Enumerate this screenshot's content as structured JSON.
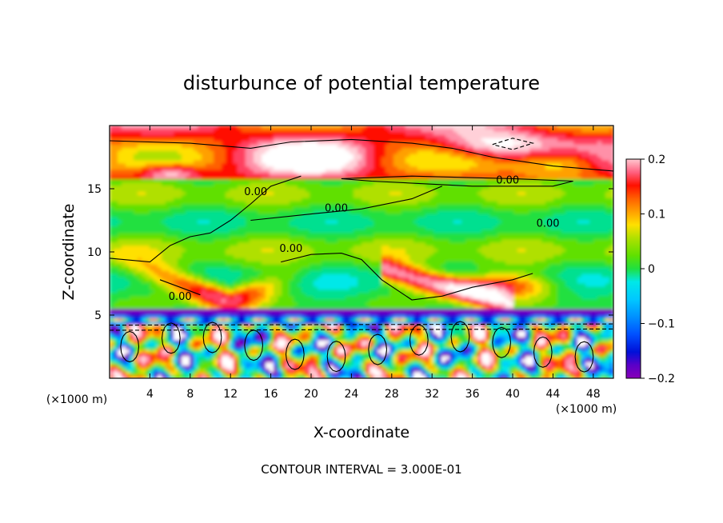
{
  "chart_data": {
    "type": "heatmap",
    "title": "disturbunce of potential temperature",
    "xlabel": "X-coordinate",
    "ylabel": "Z-coordinate",
    "x_unit_left": "(×1000 m)",
    "x_unit_right": "(×1000 m)",
    "xlim": [
      0,
      50
    ],
    "ylim": [
      0,
      20
    ],
    "xticks": [
      4,
      8,
      12,
      16,
      20,
      24,
      28,
      32,
      36,
      40,
      44,
      48
    ],
    "yticks": [
      5,
      10,
      15
    ],
    "colorbar": {
      "range": [
        -0.2,
        0.2
      ],
      "ticks": [
        0.2,
        0.1,
        0,
        -0.1,
        -0.2
      ],
      "tick_labels": [
        "0.2",
        "0.1",
        "0",
        "−0.1",
        "−0.2"
      ],
      "colors": [
        "#8800b8",
        "#5a00c8",
        "#0010d8",
        "#0050ff",
        "#0090ff",
        "#00c8ff",
        "#00e8e8",
        "#00e090",
        "#20e040",
        "#60e000",
        "#b0e000",
        "#ffe000",
        "#ffa000",
        "#ff6000",
        "#ff1000",
        "#ff4060",
        "#ff90a8",
        "#ffd0d8"
      ]
    },
    "contour_interval_text": "CONTOUR INTERVAL = 3.000E-01",
    "contour_labels": [
      {
        "text": "0.00",
        "x": 14.5,
        "z": 14.5
      },
      {
        "text": "0.00",
        "x": 22.5,
        "z": 13.2
      },
      {
        "text": "0.00",
        "x": 39.5,
        "z": 15.4
      },
      {
        "text": "0.00",
        "x": 43.5,
        "z": 12.0
      },
      {
        "text": "0.00",
        "x": 18.0,
        "z": 10.0
      },
      {
        "text": "0.00",
        "x": 7.0,
        "z": 6.2
      }
    ],
    "features": {
      "upper_band": {
        "z_range": [
          15.8,
          20
        ],
        "mean": 0.12
      },
      "mid_band": {
        "z_range": [
          6,
          15.8
        ],
        "mean": 0.0
      },
      "stable_layer": {
        "z_range": [
          4.2,
          5.5
        ],
        "mean": -0.17
      },
      "lower_band": {
        "z_range": [
          0,
          4.2
        ],
        "mean": "alternating +/-0.2"
      }
    }
  }
}
